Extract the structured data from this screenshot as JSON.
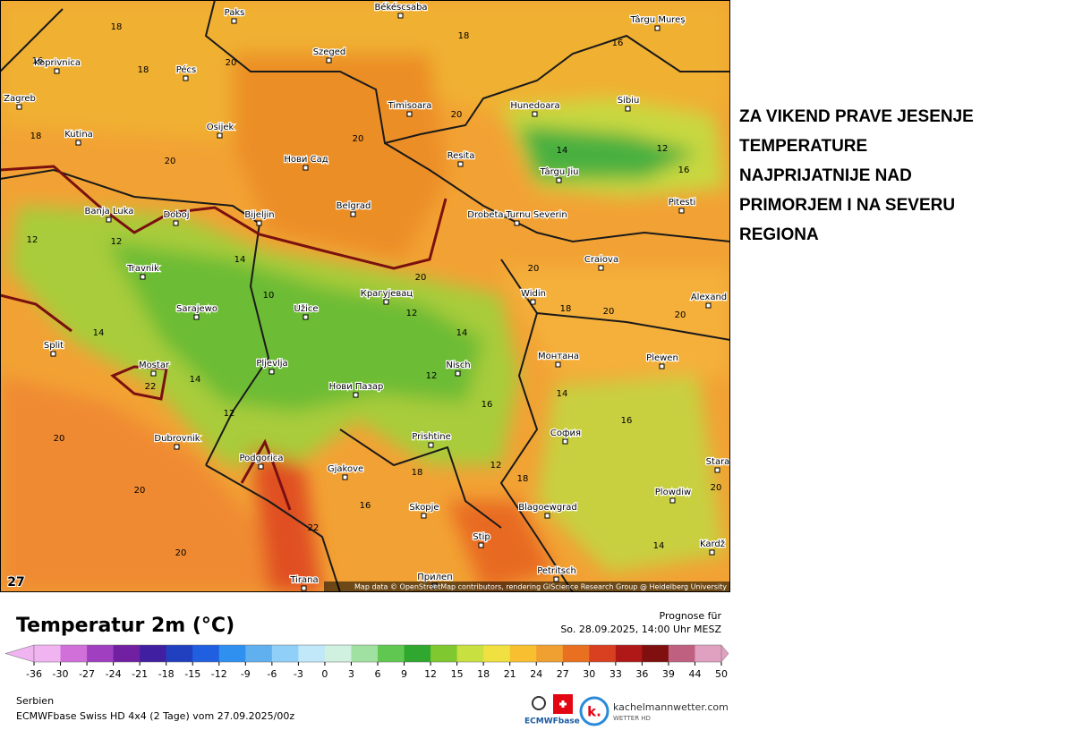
{
  "headline_lines": [
    "ZA VIKEND PRAVE JESENJE",
    "TEMPERATURE",
    "NAJPRIJATNIJE NAD",
    "PRIMORJEM I NA SEVERU",
    "REGIONA"
  ],
  "map": {
    "cities": [
      "Paks",
      "Békéscsaba",
      "Târgu Mureș",
      "Koprivnica",
      "Pécs",
      "Szeged",
      "Zagreb",
      "Osijek",
      "Timisoara",
      "Hunedoara",
      "Sibiu",
      "Kutina",
      "Нови Сад",
      "Resita",
      "Târgu Jiu",
      "Pitesti",
      "Banja Luka",
      "Doboj",
      "Bijeljin",
      "Belgrad",
      "Drobeta-Turnu Severin",
      "Craiova",
      "Travnik",
      "Widin",
      "Крагујевац",
      "Alexand",
      "Sarajewo",
      "Užice",
      "Split",
      "Mostar",
      "Pljevlja",
      "Nisch",
      "Монтана",
      "Plewen",
      "Нови Пазар",
      "Dubrovnik",
      "София",
      "Prishtine",
      "Podgorica",
      "Gjakove",
      "Stara",
      "Plowdiw",
      "Skopje",
      "Blagoewgrad",
      "Stip",
      "Kardž",
      "Petritsch",
      "Tirana",
      "Прилеп"
    ],
    "temperatures": [
      18,
      16,
      18,
      20,
      18,
      16,
      18,
      20,
      20,
      20,
      14,
      12,
      16,
      12,
      12,
      14,
      20,
      20,
      18,
      20,
      20,
      10,
      12,
      14,
      14,
      12,
      14,
      16,
      14,
      16,
      20,
      20,
      20,
      22,
      12,
      18,
      16,
      18,
      20,
      14,
      22,
      12
    ],
    "frame_label": "27",
    "credit": "Map data © OpenStreetMap contributors, rendering GIScience Research Group @ Heidelberg University"
  },
  "legend": {
    "title": "Temperatur 2m (°C)",
    "forecast_label": "Prognose für",
    "forecast_time": "So. 28.09.2025, 14:00 Uhr MESZ",
    "scale": [
      -36,
      -30,
      -27,
      -24,
      -21,
      -18,
      -15,
      -12,
      -9,
      -6,
      -3,
      0,
      3,
      6,
      9,
      12,
      15,
      18,
      21,
      24,
      27,
      30,
      33,
      36,
      39,
      44,
      50
    ],
    "colors": [
      "#f0b4f0",
      "#d070d8",
      "#a040c0",
      "#7020a0",
      "#4020a0",
      "#2040c0",
      "#2060e0",
      "#3090f0",
      "#60b0f0",
      "#90d0f8",
      "#c0e8f8",
      "#d0f0e0",
      "#a0e0a0",
      "#60c850",
      "#30a830",
      "#80c830",
      "#c8e040",
      "#f0e040",
      "#f8c030",
      "#f0a030",
      "#e87020",
      "#d84020",
      "#b01818",
      "#801010",
      "#c06080",
      "#e0a0c0"
    ]
  },
  "footer": {
    "region": "Serbien",
    "model": "ECMWFbase Swiss HD 4x4 (2 Tage) vom 27.09.2025/00z",
    "ecmwf_logo": "ECMWFbase",
    "site": "kachelmannwetter.com",
    "site_sub": "WETTER HD"
  }
}
